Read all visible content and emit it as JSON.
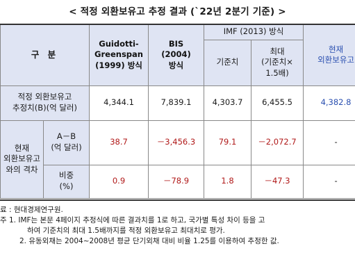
{
  "title": "< 적정 외환보유고 추정 결과 (`22년 2분기 기준) >",
  "table": {
    "header": {
      "gubun": "구 분",
      "gg": [
        "Guidotti-",
        "Greenspan",
        "(1999) 방식"
      ],
      "bis": [
        "BIS",
        "(2004)",
        "방식"
      ],
      "imf_group": "IMF (2013) 방식",
      "imf_base": "기준치",
      "imf_max": [
        "최대",
        "(기준치×",
        "1.5배)"
      ],
      "current": [
        "현재",
        "외환보유고"
      ]
    },
    "row_estimate": {
      "label": [
        "적정 외환보유고",
        "추정치(B)(억 달러)"
      ],
      "gg": "4,344.1",
      "bis": "7,839.1",
      "imf_base": "4,303.7",
      "imf_max": "6,455.5",
      "current": "4,382.8"
    },
    "gap_group": {
      "label": [
        "현재",
        "외환보유고",
        "와의 격차"
      ],
      "row_diff": {
        "label": [
          "A－B",
          "(억 달러)"
        ],
        "gg": "38.7",
        "bis": "－3,456.3",
        "imf_base": "79.1",
        "imf_max": "－2,072.7",
        "current": "-"
      },
      "row_ratio": {
        "label": [
          "비중",
          "(%)"
        ],
        "gg": "0.9",
        "bis": "－78.9",
        "imf_base": "1.8",
        "imf_max": "－47.3",
        "current": "-"
      }
    }
  },
  "notes": {
    "source": "료 : 현대경제연구원.",
    "note1a": "주 1. IMF는 본문 4페이지 추정식에 따른 결과치를 1로 하고, 국가별 특성 차이 등을 고",
    "note1b": "하여 기준치의 최대 1.5배까지를 적정 외환보유고 최대치로 평가.",
    "note2": "2. 유동외채는 2004~2008년 평균 단기외채 대비 비율 1.25를 이용하여 추정한 값."
  },
  "colors": {
    "header_bg": "#dfe4f3",
    "current_blue": "#2a4fb0",
    "negative_red": "#b11a1a"
  }
}
